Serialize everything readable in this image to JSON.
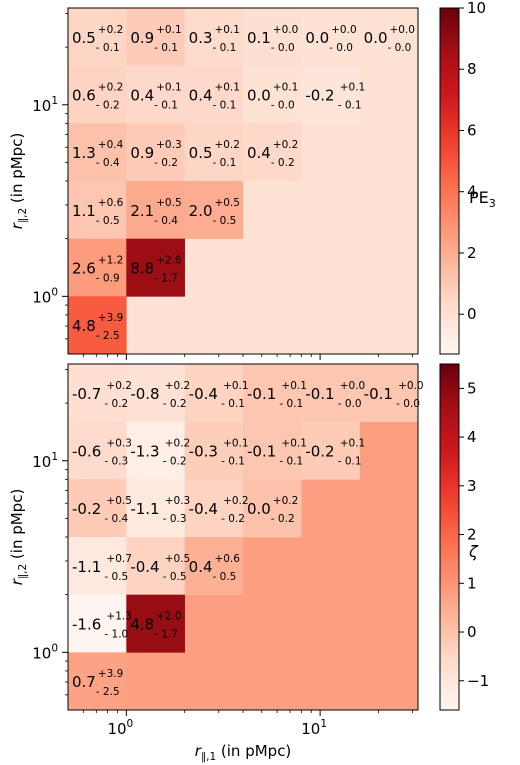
{
  "chart_data": [
    {
      "type": "heatmap",
      "x_scale": "log",
      "y_scale": "log",
      "x_edges": [
        0.5,
        1,
        2,
        4,
        8,
        16,
        32
      ],
      "y_edges": [
        0.5,
        1,
        2,
        4,
        8,
        16,
        32
      ],
      "colorbar": {
        "label": "PE",
        "label_sub": "3",
        "vmin": -1.3,
        "vmax": 10,
        "ticks": [
          "10",
          "8",
          "6",
          "4",
          "2",
          "0"
        ],
        "tick_values": [
          10,
          8,
          6,
          4,
          2,
          0
        ]
      },
      "ylabel": "r",
      "ylabel_sub": "∥,2",
      "ylabel_unit": "(in pMpc)",
      "ytick_major": [
        {
          "base": "10",
          "exp": "1",
          "value": 10
        },
        {
          "base": "10",
          "exp": "0",
          "value": 1
        }
      ],
      "background_value": 0,
      "cells": [
        {
          "col": 0,
          "row": 5,
          "value": 0.5,
          "text": "0.5",
          "up": "+0.2",
          "low": "- 0.1"
        },
        {
          "col": 1,
          "row": 5,
          "value": 0.9,
          "text": "0.9",
          "up": "+0.1",
          "low": "- 0.1"
        },
        {
          "col": 2,
          "row": 5,
          "value": 0.3,
          "text": "0.3",
          "up": "+0.1",
          "low": "- 0.1"
        },
        {
          "col": 3,
          "row": 5,
          "value": 0.1,
          "text": "0.1",
          "up": "+0.0",
          "low": "- 0.0"
        },
        {
          "col": 4,
          "row": 5,
          "value": 0.0,
          "text": "0.0",
          "up": "+0.0",
          "low": "- 0.0"
        },
        {
          "col": 5,
          "row": 5,
          "value": 0.0,
          "text": "0.0",
          "up": "+0.0",
          "low": "- 0.0"
        },
        {
          "col": 0,
          "row": 4,
          "value": 0.6,
          "text": "0.6",
          "up": "+0.2",
          "low": "- 0.2"
        },
        {
          "col": 1,
          "row": 4,
          "value": 0.4,
          "text": "0.4",
          "up": "+0.1",
          "low": "- 0.1"
        },
        {
          "col": 2,
          "row": 4,
          "value": 0.4,
          "text": "0.4",
          "up": "+0.1",
          "low": "- 0.1"
        },
        {
          "col": 3,
          "row": 4,
          "value": 0.0,
          "text": "0.0",
          "up": "+0.1",
          "low": "- 0.0"
        },
        {
          "col": 4,
          "row": 4,
          "value": -0.2,
          "text": "-0.2",
          "up": "+0.1",
          "low": "- 0.1"
        },
        {
          "col": 0,
          "row": 3,
          "value": 1.3,
          "text": "1.3",
          "up": "+0.4",
          "low": "- 0.4"
        },
        {
          "col": 1,
          "row": 3,
          "value": 0.9,
          "text": "0.9",
          "up": "+0.3",
          "low": "- 0.2"
        },
        {
          "col": 2,
          "row": 3,
          "value": 0.5,
          "text": "0.5",
          "up": "+0.2",
          "low": "- 0.1"
        },
        {
          "col": 3,
          "row": 3,
          "value": 0.4,
          "text": "0.4",
          "up": "+0.2",
          "low": "- 0.2"
        },
        {
          "col": 0,
          "row": 2,
          "value": 1.1,
          "text": "1.1",
          "up": "+0.6",
          "low": "- 0.5"
        },
        {
          "col": 1,
          "row": 2,
          "value": 2.1,
          "text": "2.1",
          "up": "+0.5",
          "low": "- 0.4"
        },
        {
          "col": 2,
          "row": 2,
          "value": 2.0,
          "text": "2.0",
          "up": "+0.5",
          "low": "- 0.5"
        },
        {
          "col": 0,
          "row": 1,
          "value": 2.6,
          "text": "2.6",
          "up": "+1.2",
          "low": "- 0.9"
        },
        {
          "col": 1,
          "row": 1,
          "value": 8.8,
          "text": "8.8",
          "up": "+2.6",
          "low": "- 1.7"
        },
        {
          "col": 0,
          "row": 0,
          "value": 4.8,
          "text": "4.8",
          "up": "+3.9",
          "low": "- 2.5"
        }
      ]
    },
    {
      "type": "heatmap",
      "x_scale": "log",
      "y_scale": "log",
      "x_edges": [
        0.5,
        1,
        2,
        4,
        8,
        16,
        32
      ],
      "y_edges": [
        0.5,
        1,
        2,
        4,
        8,
        16,
        32
      ],
      "colorbar": {
        "label": "ζ",
        "label_sub": "",
        "vmin": -1.6,
        "vmax": 5.5,
        "ticks": [
          "5",
          "4",
          "3",
          "2",
          "1",
          "0",
          "−1"
        ],
        "tick_values": [
          5,
          4,
          3,
          2,
          1,
          0,
          -1
        ]
      },
      "xlabel": "r",
      "xlabel_sub": "∥,1",
      "xlabel_unit": "(in pMpc)",
      "ylabel": "r",
      "ylabel_sub": "∥,2",
      "ylabel_unit": "(in pMpc)",
      "xtick_major": [
        {
          "base": "10",
          "exp": "0",
          "value": 1
        },
        {
          "base": "10",
          "exp": "1",
          "value": 10
        }
      ],
      "ytick_major": [
        {
          "base": "10",
          "exp": "1",
          "value": 10
        },
        {
          "base": "10",
          "exp": "0",
          "value": 1
        }
      ],
      "background_value": 0.8,
      "cells": [
        {
          "col": 0,
          "row": 5,
          "value": -0.7,
          "text": "-0.7",
          "up": "+0.2",
          "low": "- 0.2"
        },
        {
          "col": 1,
          "row": 5,
          "value": -0.8,
          "text": "-0.8",
          "up": "+0.2",
          "low": "- 0.2"
        },
        {
          "col": 2,
          "row": 5,
          "value": -0.4,
          "text": "-0.4",
          "up": "+0.1",
          "low": "- 0.1"
        },
        {
          "col": 3,
          "row": 5,
          "value": -0.1,
          "text": "-0.1",
          "up": "+0.1",
          "low": "- 0.1"
        },
        {
          "col": 4,
          "row": 5,
          "value": -0.1,
          "text": "-0.1",
          "up": "+0.0",
          "low": "- 0.0"
        },
        {
          "col": 5,
          "row": 5,
          "value": -0.1,
          "text": "-0.1",
          "up": "+0.0",
          "low": "- 0.0"
        },
        {
          "col": 0,
          "row": 4,
          "value": -0.6,
          "text": "-0.6",
          "up": "+0.3",
          "low": "- 0.3"
        },
        {
          "col": 1,
          "row": 4,
          "value": -1.3,
          "text": "-1.3",
          "up": "+0.2",
          "low": "- 0.2"
        },
        {
          "col": 2,
          "row": 4,
          "value": -0.3,
          "text": "-0.3",
          "up": "+0.1",
          "low": "- 0.1"
        },
        {
          "col": 3,
          "row": 4,
          "value": -0.1,
          "text": "-0.1",
          "up": "+0.1",
          "low": "- 0.1"
        },
        {
          "col": 4,
          "row": 4,
          "value": -0.2,
          "text": "-0.2",
          "up": "+0.1",
          "low": "- 0.1"
        },
        {
          "col": 0,
          "row": 3,
          "value": -0.2,
          "text": "-0.2",
          "up": "+0.5",
          "low": "- 0.4"
        },
        {
          "col": 1,
          "row": 3,
          "value": -1.1,
          "text": "-1.1",
          "up": "+0.3",
          "low": "- 0.3"
        },
        {
          "col": 2,
          "row": 3,
          "value": -0.4,
          "text": "-0.4",
          "up": "+0.2",
          "low": "- 0.2"
        },
        {
          "col": 3,
          "row": 3,
          "value": 0.0,
          "text": "0.0",
          "up": "+0.2",
          "low": "- 0.2"
        },
        {
          "col": 0,
          "row": 2,
          "value": -1.1,
          "text": "-1.1",
          "up": "+0.7",
          "low": "- 0.5"
        },
        {
          "col": 1,
          "row": 2,
          "value": -0.4,
          "text": "-0.4",
          "up": "+0.5",
          "low": "- 0.5"
        },
        {
          "col": 2,
          "row": 2,
          "value": 0.4,
          "text": "0.4",
          "up": "+0.6",
          "low": "- 0.5"
        },
        {
          "col": 0,
          "row": 1,
          "value": -1.6,
          "text": "-1.6",
          "up": "+1.3",
          "low": "- 1.0"
        },
        {
          "col": 1,
          "row": 1,
          "value": 4.8,
          "text": "4.8",
          "up": "+2.0",
          "low": "- 1.7"
        },
        {
          "col": 0,
          "row": 0,
          "value": 0.7,
          "text": "0.7",
          "up": "+3.9",
          "low": "- 2.5"
        }
      ]
    }
  ],
  "colors": {
    "low": "#fff5f0",
    "mid": "#fb6a4a",
    "high": "#67000d"
  }
}
